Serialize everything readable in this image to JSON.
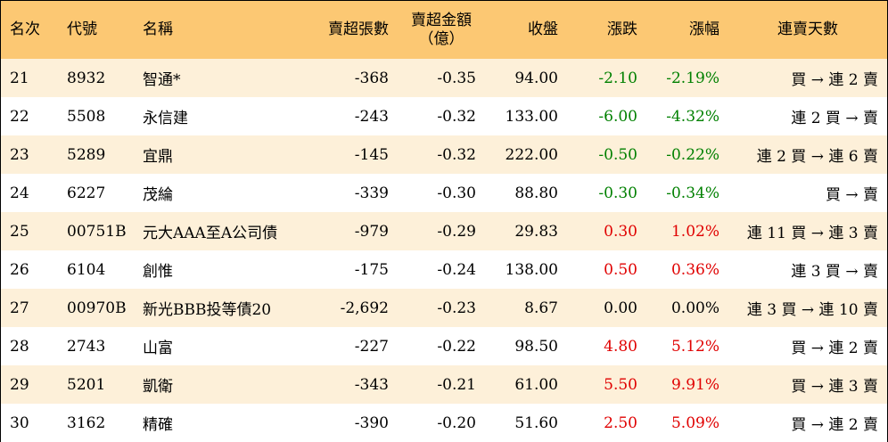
{
  "headers": {
    "rank": "名次",
    "code": "代號",
    "name": "名稱",
    "sell_shares": "賣超張數",
    "sell_amount_line1": "賣超金額",
    "sell_amount_line2": "（億）",
    "close": "收盤",
    "change": "漲跌",
    "change_pct": "漲幅",
    "consec_days": "連賣天數"
  },
  "rows": [
    {
      "rank": "21",
      "code": "8932",
      "name": "智通*",
      "sell_shares": "-368",
      "sell_amount": "-0.35",
      "close": "94.00",
      "change": "-2.10",
      "change_pct": "-2.19%",
      "trend": "neg",
      "consec": "買 → 連 2 賣"
    },
    {
      "rank": "22",
      "code": "5508",
      "name": "永信建",
      "sell_shares": "-243",
      "sell_amount": "-0.32",
      "close": "133.00",
      "change": "-6.00",
      "change_pct": "-4.32%",
      "trend": "neg",
      "consec": "連 2 買 → 賣"
    },
    {
      "rank": "23",
      "code": "5289",
      "name": "宜鼎",
      "sell_shares": "-145",
      "sell_amount": "-0.32",
      "close": "222.00",
      "change": "-0.50",
      "change_pct": "-0.22%",
      "trend": "neg",
      "consec": "連 2 買 → 連 6 賣"
    },
    {
      "rank": "24",
      "code": "6227",
      "name": "茂綸",
      "sell_shares": "-339",
      "sell_amount": "-0.30",
      "close": "88.80",
      "change": "-0.30",
      "change_pct": "-0.34%",
      "trend": "neg",
      "consec": "買 → 賣"
    },
    {
      "rank": "25",
      "code": "00751B",
      "name": "元大AAA至A公司債",
      "sell_shares": "-979",
      "sell_amount": "-0.29",
      "close": "29.83",
      "change": "0.30",
      "change_pct": "1.02%",
      "trend": "pos",
      "consec": "連 11 買 → 連 3 賣"
    },
    {
      "rank": "26",
      "code": "6104",
      "name": "創惟",
      "sell_shares": "-175",
      "sell_amount": "-0.24",
      "close": "138.00",
      "change": "0.50",
      "change_pct": "0.36%",
      "trend": "pos",
      "consec": "連 3 買 → 賣"
    },
    {
      "rank": "27",
      "code": "00970B",
      "name": "新光BBB投等債20",
      "sell_shares": "-2,692",
      "sell_amount": "-0.23",
      "close": "8.67",
      "change": "0.00",
      "change_pct": "0.00%",
      "trend": "zero",
      "consec": "連 3 買 → 連 10 賣"
    },
    {
      "rank": "28",
      "code": "2743",
      "name": "山富",
      "sell_shares": "-227",
      "sell_amount": "-0.22",
      "close": "98.50",
      "change": "4.80",
      "change_pct": "5.12%",
      "trend": "pos",
      "consec": "買 → 連 2 賣"
    },
    {
      "rank": "29",
      "code": "5201",
      "name": "凱衛",
      "sell_shares": "-343",
      "sell_amount": "-0.21",
      "close": "61.00",
      "change": "5.50",
      "change_pct": "9.91%",
      "trend": "pos",
      "consec": "買 → 連 3 賣"
    },
    {
      "rank": "30",
      "code": "3162",
      "name": "精確",
      "sell_shares": "-390",
      "sell_amount": "-0.20",
      "close": "51.60",
      "change": "2.50",
      "change_pct": "5.09%",
      "trend": "pos",
      "consec": "買 → 連 2 賣"
    }
  ],
  "colors": {
    "header_bg": "#fcc873",
    "stripe_bg": "#fdf0d9",
    "down": "#008000",
    "up": "#e00000"
  }
}
